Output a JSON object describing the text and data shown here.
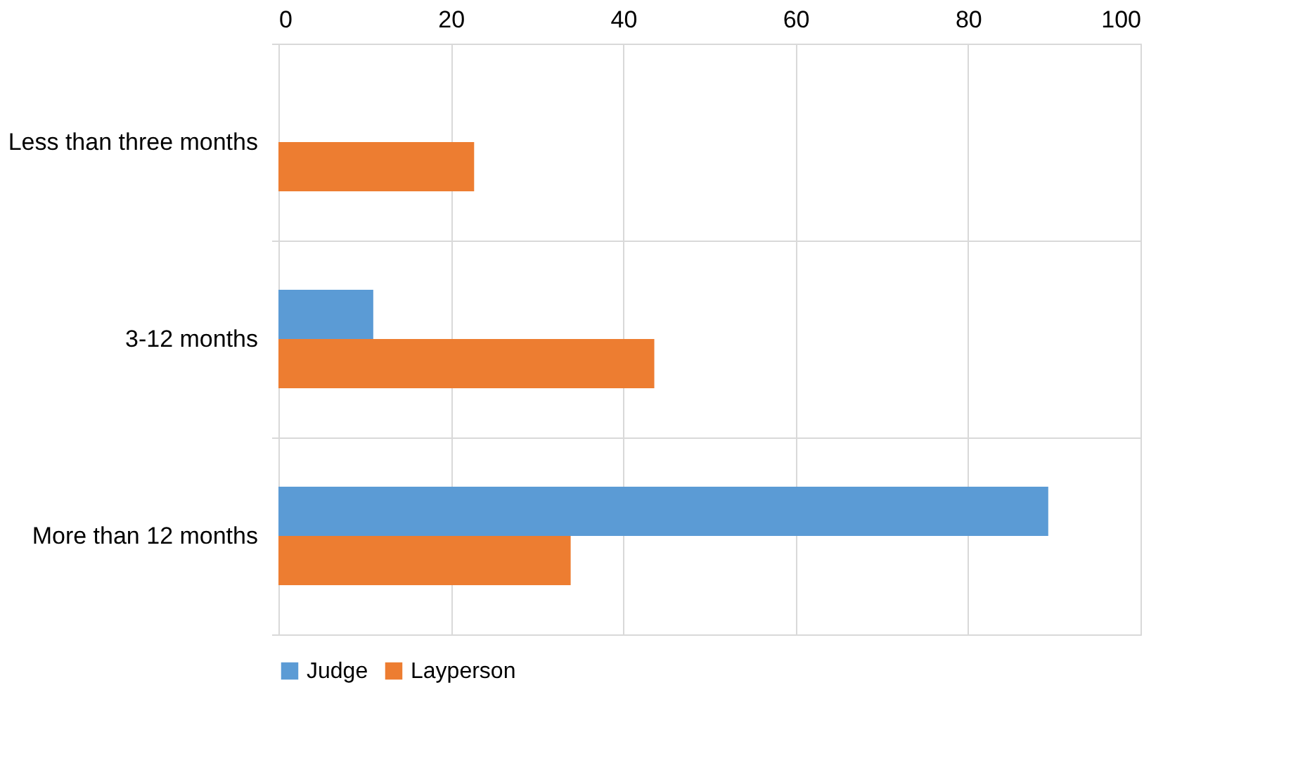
{
  "chart_data": {
    "type": "bar",
    "orientation": "horizontal",
    "categories": [
      "Less than three months",
      "3-12 months",
      "More than 12 months"
    ],
    "series": [
      {
        "name": "Judge",
        "color": "#5b9bd5",
        "values": [
          null,
          11,
          89.3
        ]
      },
      {
        "name": "Layperson",
        "color": "#ed7d31",
        "values": [
          22.7,
          43.6,
          33.9
        ]
      }
    ],
    "xlim": [
      0,
      100
    ],
    "xticks": [
      0,
      20,
      40,
      60,
      80,
      100
    ],
    "grid": true,
    "legend": "bottom"
  }
}
